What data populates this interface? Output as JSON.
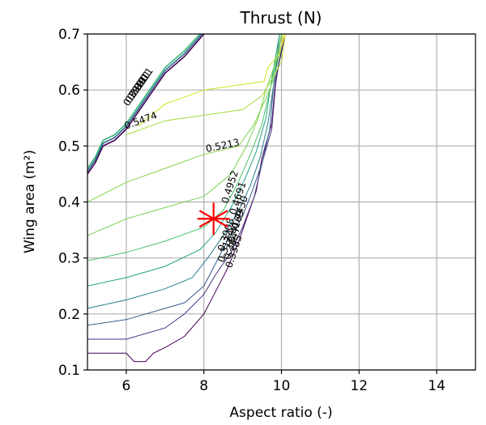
{
  "chart_data": {
    "type": "contour",
    "title": "Thrust (N)",
    "xlabel": "Aspect ratio (-)",
    "ylabel": "Wing area (m²)",
    "xlim": [
      5,
      15
    ],
    "ylim": [
      0.1,
      0.7
    ],
    "xticks": [
      6,
      8,
      10,
      12,
      14
    ],
    "yticks": [
      0.1,
      0.2,
      0.3,
      0.4,
      0.5,
      0.6,
      0.7
    ],
    "xtick_labels": [
      "6",
      "8",
      "10",
      "12",
      "14"
    ],
    "ytick_labels": [
      "0.1",
      "0.2",
      "0.3",
      "0.4",
      "0.5",
      "0.6",
      "0.7"
    ],
    "grid": true,
    "colormap": "viridis",
    "marker": {
      "x": 8.25,
      "y": 0.37,
      "symbol": "asterisk",
      "color": "#ff0000"
    },
    "levels": [
      {
        "value": 0.3124,
        "color": "#440154",
        "points": [
          [
            5.0,
            0.13
          ],
          [
            6.0,
            0.13
          ],
          [
            6.2,
            0.115
          ],
          [
            6.5,
            0.115
          ],
          [
            6.7,
            0.13
          ],
          [
            7.0,
            0.14
          ],
          [
            7.5,
            0.16
          ],
          [
            8.0,
            0.2
          ],
          [
            8.3,
            0.24
          ],
          [
            8.6,
            0.28
          ],
          [
            8.9,
            0.33
          ],
          [
            9.1,
            0.37
          ],
          [
            9.35,
            0.42
          ],
          [
            9.5,
            0.48
          ],
          [
            9.75,
            0.54
          ],
          [
            9.85,
            0.62
          ],
          [
            10.1,
            0.7
          ]
        ]
      },
      {
        "value": 0.3385,
        "color": "#46327e",
        "points": [
          [
            5.0,
            0.155
          ],
          [
            6.0,
            0.155
          ],
          [
            7.0,
            0.175
          ],
          [
            7.5,
            0.2
          ],
          [
            8.0,
            0.235
          ],
          [
            8.3,
            0.27
          ],
          [
            8.7,
            0.31
          ],
          [
            9.0,
            0.355
          ],
          [
            9.3,
            0.41
          ],
          [
            9.5,
            0.47
          ],
          [
            9.75,
            0.53
          ],
          [
            9.85,
            0.61
          ],
          [
            10.05,
            0.7
          ]
        ]
      },
      {
        "value": 0.3647,
        "color": "#365c8d",
        "points": [
          [
            5.0,
            0.18
          ],
          [
            6.0,
            0.19
          ],
          [
            7.0,
            0.21
          ],
          [
            7.5,
            0.22
          ],
          [
            8.0,
            0.25
          ],
          [
            8.3,
            0.29
          ],
          [
            8.6,
            0.33
          ],
          [
            9.0,
            0.375
          ],
          [
            9.25,
            0.42
          ],
          [
            9.5,
            0.47
          ],
          [
            9.7,
            0.53
          ],
          [
            9.8,
            0.61
          ],
          [
            10.0,
            0.7
          ]
        ]
      },
      {
        "value": 0.3908,
        "color": "#277f8e",
        "points": [
          [
            5.0,
            0.21
          ],
          [
            6.0,
            0.225
          ],
          [
            7.0,
            0.245
          ],
          [
            7.7,
            0.265
          ],
          [
            8.1,
            0.3
          ],
          [
            8.5,
            0.34
          ],
          [
            8.9,
            0.385
          ],
          [
            9.2,
            0.43
          ],
          [
            9.45,
            0.48
          ],
          [
            9.65,
            0.54
          ],
          [
            9.8,
            0.61
          ],
          [
            9.95,
            0.7
          ]
        ]
      },
      {
        "value": 0.4169,
        "color": "#1fa187",
        "points": [
          [
            5.0,
            0.25
          ],
          [
            6.0,
            0.265
          ],
          [
            7.0,
            0.285
          ],
          [
            7.9,
            0.315
          ],
          [
            8.3,
            0.345
          ],
          [
            8.7,
            0.39
          ],
          [
            9.05,
            0.44
          ],
          [
            9.35,
            0.49
          ],
          [
            9.6,
            0.55
          ],
          [
            9.75,
            0.62
          ],
          [
            9.95,
            0.7
          ]
        ]
      },
      {
        "value": 0.443,
        "color": "#4ac16d",
        "points": [
          [
            5.0,
            0.295
          ],
          [
            6.0,
            0.31
          ],
          [
            7.0,
            0.33
          ],
          [
            8.0,
            0.355
          ],
          [
            8.5,
            0.385
          ],
          [
            8.85,
            0.43
          ],
          [
            9.2,
            0.485
          ],
          [
            9.5,
            0.54
          ],
          [
            9.7,
            0.6
          ],
          [
            9.9,
            0.66
          ],
          [
            10.0,
            0.7
          ]
        ]
      },
      {
        "value": 0.4691,
        "color": "#7ad151",
        "points": [
          [
            5.0,
            0.34
          ],
          [
            6.0,
            0.37
          ],
          [
            7.0,
            0.39
          ],
          [
            8.0,
            0.41
          ],
          [
            8.7,
            0.45
          ],
          [
            9.1,
            0.5
          ],
          [
            9.4,
            0.55
          ],
          [
            9.6,
            0.6
          ],
          [
            9.85,
            0.65
          ],
          [
            10.0,
            0.7
          ]
        ]
      },
      {
        "value": 0.4952,
        "color": "#83d34b",
        "points": [
          [
            5.0,
            0.4
          ],
          [
            6.0,
            0.435
          ],
          [
            7.0,
            0.46
          ],
          [
            8.0,
            0.485
          ],
          [
            8.9,
            0.5
          ],
          [
            9.3,
            0.54
          ],
          [
            9.6,
            0.585
          ],
          [
            9.8,
            0.62
          ],
          [
            9.95,
            0.66
          ],
          [
            10.05,
            0.7
          ]
        ]
      },
      {
        "value": 0.5213,
        "color": "#a5db36",
        "points": [
          [
            6.0,
            0.52
          ],
          [
            7.0,
            0.545
          ],
          [
            8.0,
            0.555
          ],
          [
            9.0,
            0.565
          ],
          [
            9.5,
            0.59
          ],
          [
            9.8,
            0.625
          ],
          [
            10.0,
            0.65
          ],
          [
            10.1,
            0.7
          ]
        ]
      },
      {
        "value": 0.5474,
        "color": "#d2e21b",
        "points": [
          [
            6.3,
            0.535
          ],
          [
            7.0,
            0.575
          ],
          [
            8.0,
            0.6
          ],
          [
            9.0,
            0.61
          ],
          [
            9.55,
            0.615
          ],
          [
            9.65,
            0.64
          ],
          [
            9.95,
            0.665
          ],
          [
            10.05,
            0.7
          ]
        ]
      },
      {
        "value": 0.5735,
        "color": "#fde725",
        "points": [
          [
            10.0,
            0.68
          ],
          [
            10.1,
            0.7
          ]
        ]
      }
    ],
    "boundary_lines": [
      {
        "color": "#440154",
        "points": [
          [
            5.0,
            0.45
          ],
          [
            5.2,
            0.47
          ],
          [
            5.4,
            0.5
          ],
          [
            5.7,
            0.51
          ],
          [
            6.0,
            0.53
          ],
          [
            6.3,
            0.56
          ],
          [
            6.7,
            0.6
          ],
          [
            7.0,
            0.63
          ],
          [
            7.5,
            0.66
          ],
          [
            8.0,
            0.7
          ]
        ]
      },
      {
        "color": "#31688e",
        "points": [
          [
            5.0,
            0.455
          ],
          [
            5.2,
            0.475
          ],
          [
            5.4,
            0.505
          ],
          [
            5.7,
            0.515
          ],
          [
            6.0,
            0.535
          ],
          [
            6.3,
            0.565
          ],
          [
            6.7,
            0.605
          ],
          [
            7.0,
            0.635
          ],
          [
            7.5,
            0.665
          ],
          [
            7.95,
            0.7
          ]
        ]
      },
      {
        "color": "#35b779",
        "points": [
          [
            5.0,
            0.46
          ],
          [
            5.2,
            0.48
          ],
          [
            5.4,
            0.51
          ],
          [
            5.7,
            0.52
          ],
          [
            6.0,
            0.54
          ],
          [
            6.3,
            0.57
          ],
          [
            6.7,
            0.61
          ],
          [
            7.0,
            0.64
          ],
          [
            7.5,
            0.67
          ],
          [
            7.9,
            0.7
          ]
        ]
      }
    ],
    "contour_labels": [
      {
        "text": "0.5474",
        "x": 6.4,
        "y": 0.54,
        "rotation": -20
      },
      {
        "text": "0.5213",
        "x": 8.5,
        "y": 0.495,
        "rotation": -12
      },
      {
        "text": "0.4952",
        "x": 8.75,
        "y": 0.425,
        "rotation": -72
      },
      {
        "text": "0.4691",
        "x": 8.95,
        "y": 0.405,
        "rotation": -72
      },
      {
        "text": "0.4430",
        "x": 9.0,
        "y": 0.38,
        "rotation": -72
      },
      {
        "text": "0.4169",
        "x": 8.9,
        "y": 0.355,
        "rotation": -72
      },
      {
        "text": "0.3908",
        "x": 8.65,
        "y": 0.34,
        "rotation": -72
      },
      {
        "text": "0.3647",
        "x": 8.8,
        "y": 0.325,
        "rotation": -72
      },
      {
        "text": "0.3385",
        "x": 8.85,
        "y": 0.31,
        "rotation": -72
      },
      {
        "text": "0.3124",
        "x": 8.65,
        "y": 0.32,
        "rotation": -72
      },
      {
        "text": "0.3911",
        "x": 6.3,
        "y": 0.595,
        "rotation": -55
      },
      {
        "text": "0.3911",
        "x": 6.35,
        "y": 0.6,
        "rotation": -55
      },
      {
        "text": "0.3911",
        "x": 6.4,
        "y": 0.605,
        "rotation": -55
      },
      {
        "text": "0.3911",
        "x": 6.45,
        "y": 0.61,
        "rotation": -55
      }
    ]
  }
}
